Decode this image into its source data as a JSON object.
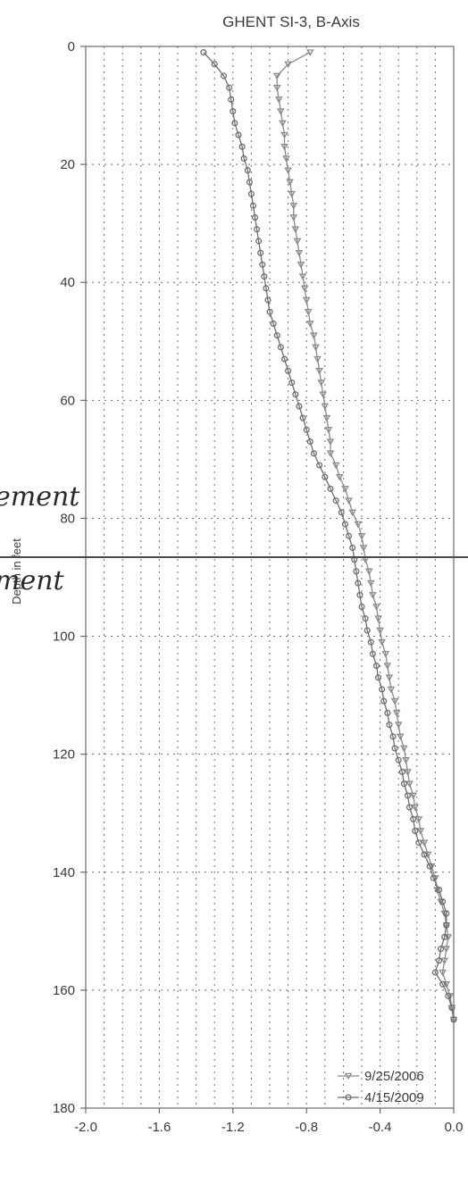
{
  "chart_data": {
    "type": "line",
    "title": "GHENT SI-3, B-Axis",
    "xlabel": "",
    "ylabel": "Depth in feet",
    "xlim": [
      -2.0,
      0.0
    ],
    "ylim": [
      180,
      0
    ],
    "x_ticks": [
      "-2.0",
      "-1.6",
      "-1.2",
      "-0.8",
      "-0.4",
      "0.0"
    ],
    "y_ticks": [
      "0",
      "20",
      "40",
      "60",
      "80",
      "100",
      "120",
      "140",
      "160",
      "180"
    ],
    "grid": true,
    "legend_position": "bottom-right",
    "series": [
      {
        "name": "9/25/2006",
        "marker": "triangle-down",
        "color": "#8a8a8a",
        "points": [
          [
            -0.78,
            1
          ],
          [
            -0.9,
            3
          ],
          [
            -0.96,
            5
          ],
          [
            -0.96,
            7
          ],
          [
            -0.95,
            9
          ],
          [
            -0.94,
            11
          ],
          [
            -0.93,
            13
          ],
          [
            -0.92,
            15
          ],
          [
            -0.92,
            17
          ],
          [
            -0.91,
            19
          ],
          [
            -0.9,
            21
          ],
          [
            -0.89,
            23
          ],
          [
            -0.88,
            25
          ],
          [
            -0.87,
            27
          ],
          [
            -0.87,
            29
          ],
          [
            -0.86,
            31
          ],
          [
            -0.85,
            33
          ],
          [
            -0.84,
            35
          ],
          [
            -0.83,
            37
          ],
          [
            -0.82,
            39
          ],
          [
            -0.81,
            41
          ],
          [
            -0.8,
            43
          ],
          [
            -0.79,
            45
          ],
          [
            -0.78,
            47
          ],
          [
            -0.76,
            49
          ],
          [
            -0.75,
            51
          ],
          [
            -0.74,
            53
          ],
          [
            -0.73,
            55
          ],
          [
            -0.72,
            57
          ],
          [
            -0.71,
            59
          ],
          [
            -0.7,
            61
          ],
          [
            -0.69,
            63
          ],
          [
            -0.68,
            65
          ],
          [
            -0.67,
            67
          ],
          [
            -0.67,
            69
          ],
          [
            -0.64,
            71
          ],
          [
            -0.62,
            73
          ],
          [
            -0.59,
            75
          ],
          [
            -0.57,
            77
          ],
          [
            -0.55,
            79
          ],
          [
            -0.52,
            81
          ],
          [
            -0.5,
            83
          ],
          [
            -0.49,
            85
          ],
          [
            -0.48,
            87
          ],
          [
            -0.46,
            89
          ],
          [
            -0.45,
            91
          ],
          [
            -0.44,
            93
          ],
          [
            -0.42,
            95
          ],
          [
            -0.41,
            97
          ],
          [
            -0.4,
            99
          ],
          [
            -0.39,
            101
          ],
          [
            -0.37,
            103
          ],
          [
            -0.36,
            105
          ],
          [
            -0.35,
            107
          ],
          [
            -0.34,
            109
          ],
          [
            -0.32,
            111
          ],
          [
            -0.31,
            113
          ],
          [
            -0.3,
            115
          ],
          [
            -0.29,
            117
          ],
          [
            -0.27,
            119
          ],
          [
            -0.26,
            121
          ],
          [
            -0.25,
            123
          ],
          [
            -0.24,
            125
          ],
          [
            -0.22,
            127
          ],
          [
            -0.21,
            129
          ],
          [
            -0.19,
            131
          ],
          [
            -0.18,
            133
          ],
          [
            -0.16,
            135
          ],
          [
            -0.14,
            137
          ],
          [
            -0.12,
            139
          ],
          [
            -0.1,
            141
          ],
          [
            -0.09,
            143
          ],
          [
            -0.07,
            145
          ],
          [
            -0.05,
            147
          ],
          [
            -0.04,
            149
          ],
          [
            -0.03,
            151
          ],
          [
            -0.04,
            153
          ],
          [
            -0.05,
            155
          ],
          [
            -0.06,
            157
          ],
          [
            -0.04,
            159
          ],
          [
            -0.02,
            161
          ],
          [
            -0.01,
            163
          ],
          [
            0.0,
            165
          ]
        ]
      },
      {
        "name": "4/15/2009",
        "marker": "circle",
        "color": "#6e6e6e",
        "points": [
          [
            -1.36,
            1
          ],
          [
            -1.3,
            3
          ],
          [
            -1.25,
            5
          ],
          [
            -1.22,
            7
          ],
          [
            -1.21,
            9
          ],
          [
            -1.2,
            11
          ],
          [
            -1.19,
            13
          ],
          [
            -1.17,
            15
          ],
          [
            -1.15,
            17
          ],
          [
            -1.14,
            19
          ],
          [
            -1.12,
            21
          ],
          [
            -1.11,
            23
          ],
          [
            -1.1,
            25
          ],
          [
            -1.09,
            27
          ],
          [
            -1.08,
            29
          ],
          [
            -1.07,
            31
          ],
          [
            -1.06,
            33
          ],
          [
            -1.05,
            35
          ],
          [
            -1.04,
            37
          ],
          [
            -1.03,
            39
          ],
          [
            -1.02,
            41
          ],
          [
            -1.01,
            43
          ],
          [
            -1.0,
            45
          ],
          [
            -0.98,
            47
          ],
          [
            -0.96,
            49
          ],
          [
            -0.94,
            51
          ],
          [
            -0.92,
            53
          ],
          [
            -0.9,
            55
          ],
          [
            -0.88,
            57
          ],
          [
            -0.86,
            59
          ],
          [
            -0.84,
            61
          ],
          [
            -0.82,
            63
          ],
          [
            -0.8,
            65
          ],
          [
            -0.78,
            67
          ],
          [
            -0.76,
            69
          ],
          [
            -0.73,
            71
          ],
          [
            -0.7,
            73
          ],
          [
            -0.67,
            75
          ],
          [
            -0.64,
            77
          ],
          [
            -0.61,
            79
          ],
          [
            -0.59,
            81
          ],
          [
            -0.57,
            83
          ],
          [
            -0.55,
            85
          ],
          [
            -0.54,
            87
          ],
          [
            -0.53,
            89
          ],
          [
            -0.52,
            91
          ],
          [
            -0.51,
            93
          ],
          [
            -0.5,
            95
          ],
          [
            -0.48,
            97
          ],
          [
            -0.47,
            99
          ],
          [
            -0.45,
            101
          ],
          [
            -0.44,
            103
          ],
          [
            -0.42,
            105
          ],
          [
            -0.41,
            107
          ],
          [
            -0.39,
            109
          ],
          [
            -0.38,
            111
          ],
          [
            -0.36,
            113
          ],
          [
            -0.35,
            115
          ],
          [
            -0.33,
            117
          ],
          [
            -0.32,
            119
          ],
          [
            -0.3,
            121
          ],
          [
            -0.28,
            123
          ],
          [
            -0.27,
            125
          ],
          [
            -0.25,
            127
          ],
          [
            -0.24,
            129
          ],
          [
            -0.22,
            131
          ],
          [
            -0.21,
            133
          ],
          [
            -0.19,
            135
          ],
          [
            -0.16,
            137
          ],
          [
            -0.13,
            139
          ],
          [
            -0.11,
            141
          ],
          [
            -0.08,
            143
          ],
          [
            -0.06,
            145
          ],
          [
            -0.04,
            147
          ],
          [
            -0.04,
            149
          ],
          [
            -0.05,
            151
          ],
          [
            -0.07,
            153
          ],
          [
            -0.08,
            155
          ],
          [
            -0.1,
            157
          ],
          [
            -0.06,
            159
          ],
          [
            -0.03,
            161
          ],
          [
            -0.01,
            163
          ],
          [
            0.0,
            165
          ]
        ]
      }
    ]
  },
  "annotations": {
    "handwritten_upper": "ement",
    "handwritten_lower": "ment"
  }
}
